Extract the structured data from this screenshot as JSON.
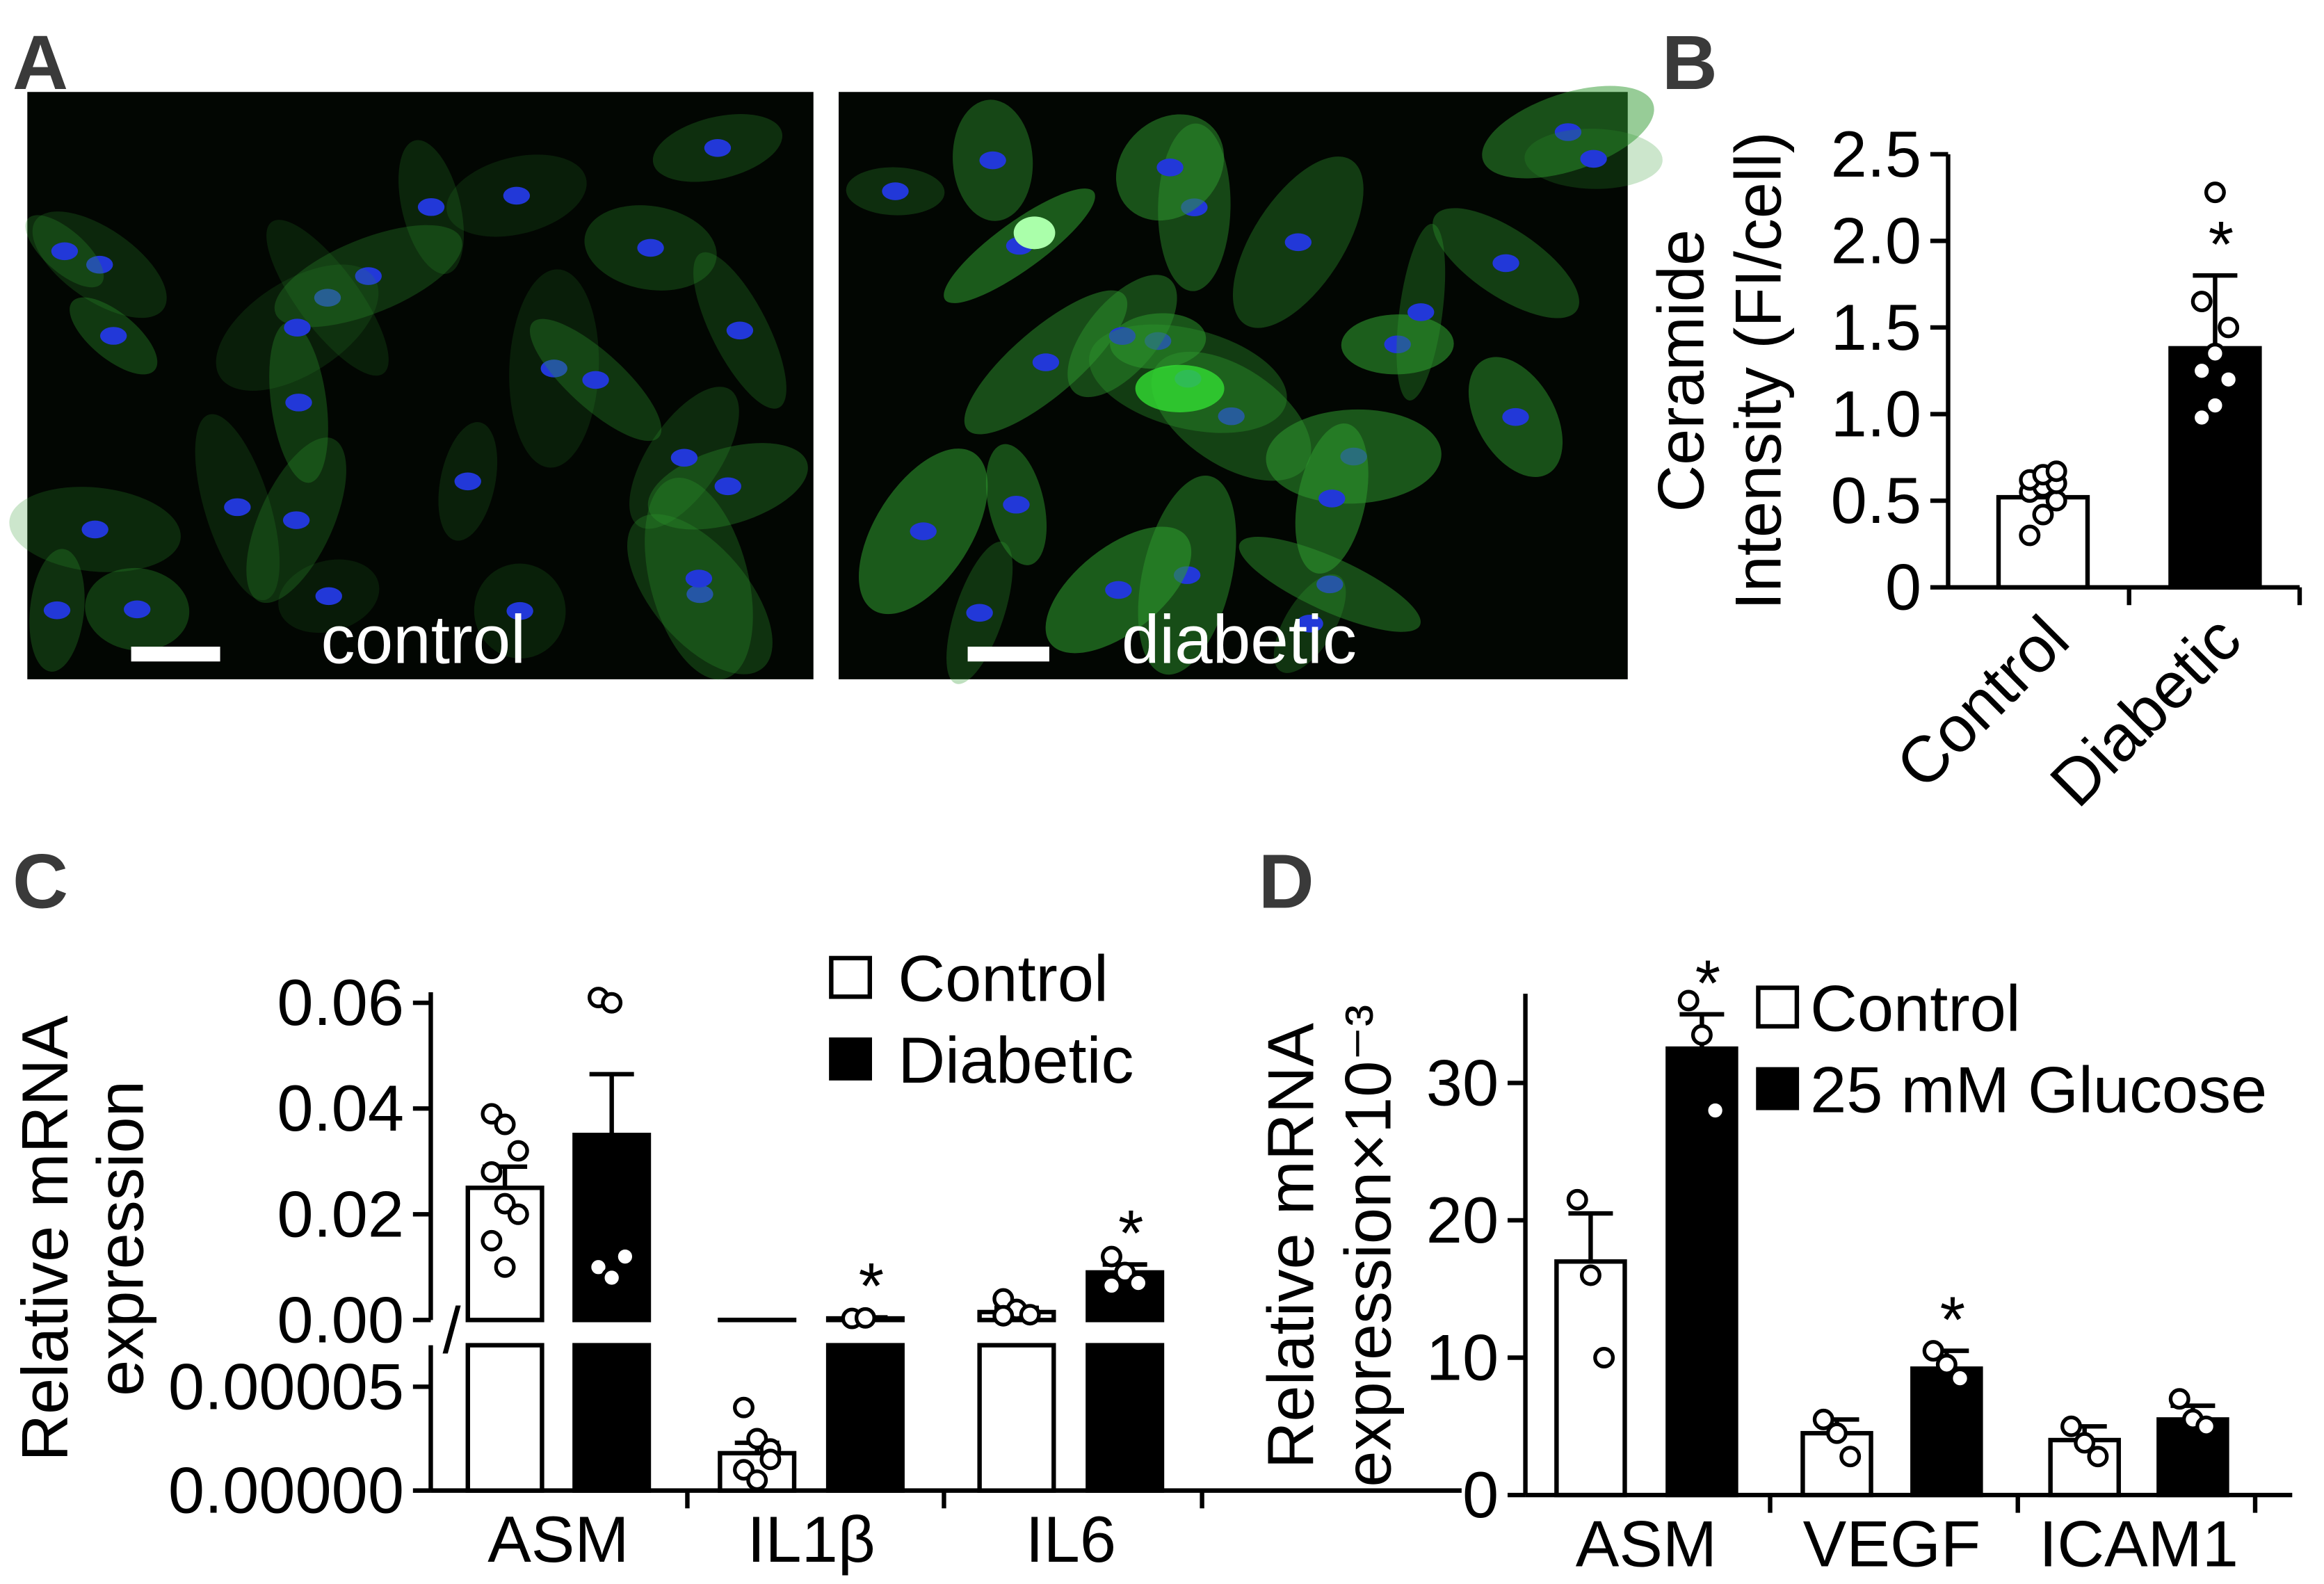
{
  "panel_labels": [
    "A",
    "B",
    "C",
    "D"
  ],
  "micrographs": [
    "control",
    "diabetic"
  ],
  "chart_data": [
    {
      "type": "bar",
      "y_label": [
        "Ceramide",
        "Intensity (FI/cell)"
      ],
      "categories": [
        "Control",
        "Diabetic"
      ],
      "values": [
        0.52,
        1.38
      ],
      "errors": [
        0.1,
        0.42
      ],
      "points": [
        [
          0.3,
          0.42,
          0.5,
          0.55,
          0.58,
          0.6,
          0.62,
          0.65,
          0.67
        ],
        [
          0.98,
          1.05,
          1.2,
          1.25,
          1.35,
          1.5,
          1.65,
          2.28
        ]
      ],
      "annotations": [
        null,
        "*"
      ],
      "colors": [
        "#ffffff",
        "#000000"
      ],
      "ylim": [
        0,
        2.5
      ],
      "yticks": [
        0,
        0.5,
        {
          "value": 1,
          "label": "1.0"
        },
        1.5,
        {
          "value": 2,
          "label": "2.0"
        },
        2.5
      ]
    },
    {
      "type": "broken-bar",
      "y_label": [
        "Relative mRNA",
        "expression"
      ],
      "categories": [
        "ASM",
        "IL1β",
        "IL6"
      ],
      "series": [
        {
          "name": "Control",
          "color": "#ffffff",
          "values": [
            0.025,
            1.8e-05,
            0.0015
          ],
          "errors": [
            0.004,
            5e-06,
            0.0008
          ],
          "points": [
            [
              0.039,
              0.037,
              0.032,
              0.028,
              0.022,
              0.02,
              0.015,
              0.01
            ],
            [
              4e-05,
              2.5e-05,
              2e-05,
              1e-05,
              5e-06,
              1.5e-05
            ],
            [
              0.004,
              0.002,
              0.001,
              0.0008
            ]
          ]
        },
        {
          "name": "Diabetic",
          "color": "#000000",
          "values": [
            0.035,
            0.0003,
            0.009
          ],
          "errors": [
            0.0115,
            0.0002,
            0.0015
          ],
          "points": [
            [
              0.061,
              0.06,
              0.012,
              0.01,
              0.008
            ],
            [
              0.0003,
              0.0004
            ],
            [
              0.012,
              0.009,
              0.007,
              0.0065
            ]
          ],
          "annotations": [
            null,
            "*",
            "*"
          ]
        }
      ],
      "ylim": [
        0,
        0.062
      ],
      "yticks": [
        {
          "value": 0,
          "label": "0.00"
        },
        {
          "value": 0.02,
          "label": "0.02"
        },
        {
          "value": 0.04,
          "label": "0.04"
        },
        {
          "value": 0.06,
          "label": "0.06"
        }
      ],
      "ylim_lower": [
        0,
        7e-05
      ],
      "yticks_lower": [
        {
          "value": 0,
          "label": "0.00000"
        },
        {
          "value": 5e-05,
          "label": "0.00005"
        }
      ]
    },
    {
      "type": "bar",
      "y_label": [
        "Relative mRNA",
        "expression×10⁻³"
      ],
      "categories": [
        "ASM",
        "VEGF",
        "ICAM1"
      ],
      "series": [
        {
          "name": "Control",
          "color": "#ffffff",
          "values": [
            17,
            4.5,
            4
          ],
          "errors": [
            3.5,
            1,
            1
          ],
          "points": [
            [
              21.5,
              16,
              10
            ],
            [
              5.5,
              4.5,
              2.8
            ],
            [
              5,
              3.8,
              2.8
            ]
          ]
        },
        {
          "name": "25 mM Glucose",
          "color": "#000000",
          "values": [
            32.5,
            9.2,
            5.5
          ],
          "errors": [
            2.5,
            1.3,
            1
          ],
          "points": [
            [
              36,
              33.5,
              28
            ],
            [
              10.5,
              9.5,
              8.5
            ],
            [
              7,
              5.5,
              5
            ]
          ],
          "annotations": [
            "*",
            "*",
            null
          ]
        }
      ],
      "ylim": [
        0,
        36.5
      ],
      "yticks": [
        0,
        10,
        20,
        30
      ]
    }
  ]
}
